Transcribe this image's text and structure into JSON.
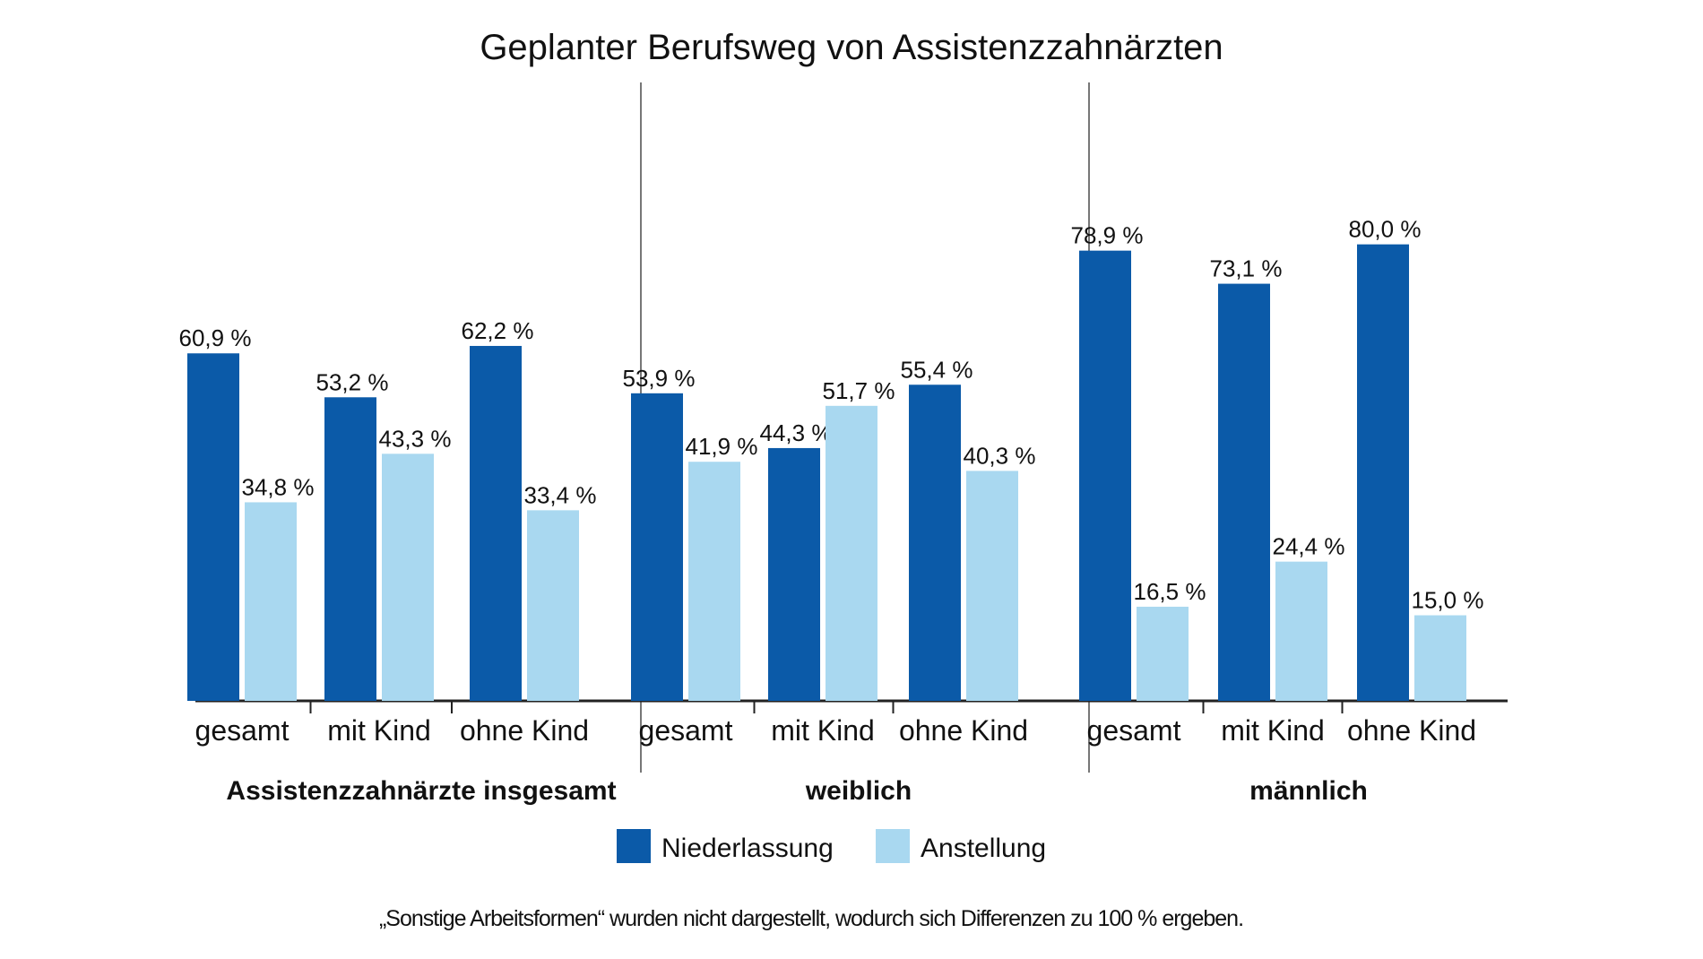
{
  "chart_data": {
    "type": "bar",
    "title": "Geplanter Berufsweg von Assistenzzahnärzten",
    "xlabel": "",
    "ylabel": "",
    "ylim": [
      0,
      85
    ],
    "groups": [
      {
        "label": "Assistenzzahnärzte insgesamt",
        "categories": [
          "gesamt",
          "mit Kind",
          "ohne Kind"
        ],
        "series": [
          {
            "name": "Niederlassung",
            "values": [
              60.9,
              53.2,
              62.2
            ],
            "labels": [
              "60,9 %",
              "53,2 %",
              "62,2 %"
            ]
          },
          {
            "name": "Anstellung",
            "values": [
              34.8,
              43.3,
              33.4
            ],
            "labels": [
              "34,8 %",
              "43,3 %",
              "33,4 %"
            ]
          }
        ]
      },
      {
        "label": "weiblich",
        "categories": [
          "gesamt",
          "mit Kind",
          "ohne Kind"
        ],
        "series": [
          {
            "name": "Niederlassung",
            "values": [
              53.9,
              44.3,
              55.4
            ],
            "labels": [
              "53,9 %",
              "44,3 %",
              "55,4 %"
            ]
          },
          {
            "name": "Anstellung",
            "values": [
              41.9,
              51.7,
              40.3
            ],
            "labels": [
              "41,9 %",
              "51,7 %",
              "40,3 %"
            ]
          }
        ]
      },
      {
        "label": "männlich",
        "categories": [
          "gesamt",
          "mit Kind",
          "ohne Kind"
        ],
        "series": [
          {
            "name": "Niederlassung",
            "values": [
              78.9,
              73.1,
              80.0
            ],
            "labels": [
              "78,9 %",
              "73,1 %",
              "80,0 %"
            ]
          },
          {
            "name": "Anstellung",
            "values": [
              16.5,
              24.4,
              15.0
            ],
            "labels": [
              "16,5 %",
              "24,4 %",
              "15,0 %"
            ]
          }
        ]
      }
    ],
    "legend": [
      {
        "name": "Niederlassung",
        "color": "#0b5aa8"
      },
      {
        "name": "Anstellung",
        "color": "#a9d8f0"
      }
    ],
    "legend_position": "bottom-center",
    "grid": false,
    "footnote": "„Sonstige Arbeitsformen“ wurden nicht dargestellt, wodurch sich Differenzen zu 100 % ergeben."
  },
  "colors": {
    "niederlassung": "#0b5aa8",
    "anstellung": "#a9d8f0",
    "axis": "#222222",
    "divider": "#777777"
  }
}
